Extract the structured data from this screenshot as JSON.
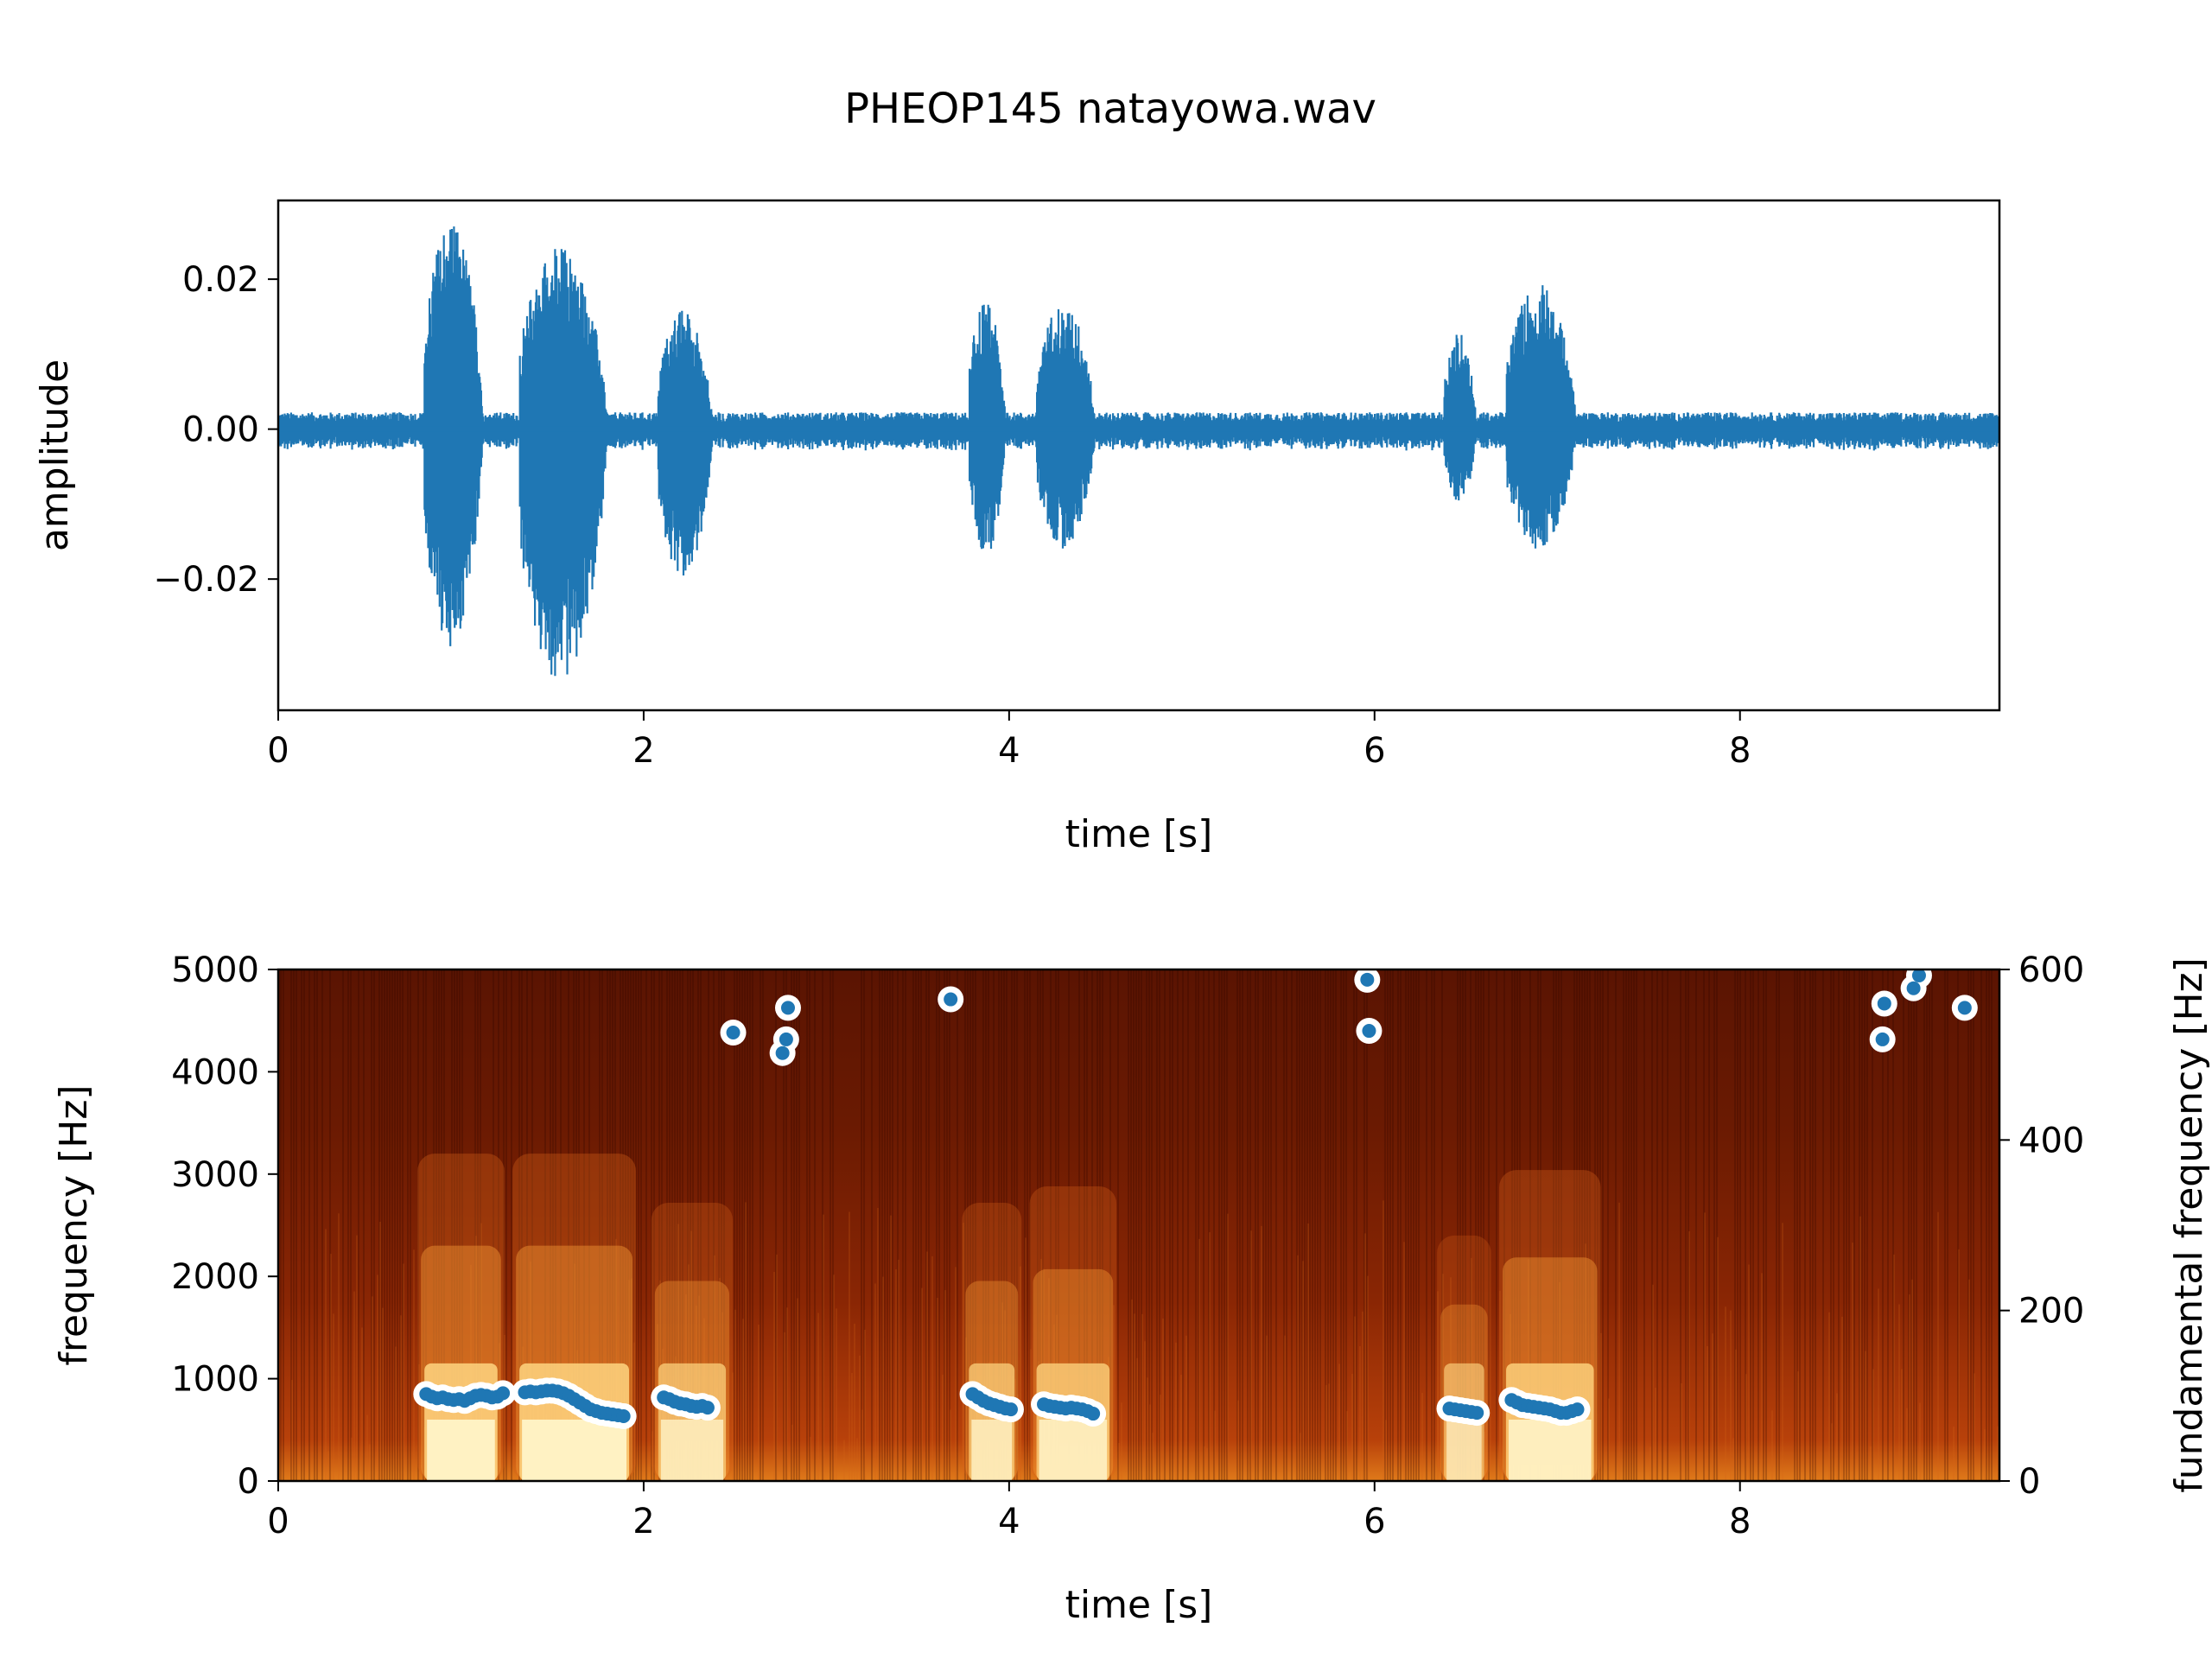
{
  "figure": {
    "title": "PHEOP145 natayowa.wav"
  },
  "chart_data": [
    {
      "type": "line",
      "name": "waveform",
      "title": "",
      "xlabel": "time [s]",
      "ylabel": "amplitude",
      "xlim": [
        0,
        9.42
      ],
      "ylim": [
        -0.0375,
        0.0305
      ],
      "xticks": [
        0,
        2,
        4,
        6,
        8
      ],
      "xtick_labels": [
        "0",
        "2",
        "4",
        "6",
        "8"
      ],
      "yticks": [
        -0.02,
        0.0,
        0.02
      ],
      "ytick_labels": [
        "−0.02",
        "0.00",
        "0.02"
      ],
      "color": "#1f77b4",
      "noise_floor": 0.0016,
      "bursts": [
        {
          "start": 0.8,
          "end": 1.2,
          "max": 0.028,
          "min": -0.029
        },
        {
          "start": 1.32,
          "end": 1.92,
          "max": 0.0245,
          "min": -0.034
        },
        {
          "start": 2.08,
          "end": 2.45,
          "max": 0.016,
          "min": -0.02
        },
        {
          "start": 3.78,
          "end": 4.03,
          "max": 0.017,
          "min": -0.017
        },
        {
          "start": 4.15,
          "end": 4.55,
          "max": 0.017,
          "min": -0.016
        },
        {
          "start": 6.38,
          "end": 6.6,
          "max": 0.013,
          "min": -0.01
        },
        {
          "start": 6.72,
          "end": 7.2,
          "max": 0.0195,
          "min": -0.016
        }
      ]
    },
    {
      "type": "heatmap",
      "name": "spectrogram",
      "title": "",
      "xlabel": "time [s]",
      "ylabel": "frequency [Hz]",
      "ylabel_right": "fundamental frequency [Hz]",
      "xlim": [
        0,
        9.42
      ],
      "ylim": [
        0,
        5000
      ],
      "ylim_right": [
        0,
        600
      ],
      "xticks": [
        0,
        2,
        4,
        6,
        8
      ],
      "xtick_labels": [
        "0",
        "2",
        "4",
        "6",
        "8"
      ],
      "yticks": [
        0,
        1000,
        2000,
        3000,
        4000,
        5000
      ],
      "ytick_labels": [
        "0",
        "1000",
        "2000",
        "3000",
        "4000",
        "5000"
      ],
      "yticks_right": [
        0,
        200,
        400,
        600
      ],
      "ytick_labels_right": [
        "0",
        "200",
        "400",
        "600"
      ],
      "colormap": "afmhot",
      "colors": {
        "low": "#3a0800",
        "mid": "#b03a05",
        "high": "#ffe59a",
        "peak": "#fffbe0"
      },
      "voiced_regions": [
        {
          "start": 0.8,
          "end": 1.2,
          "intensity": 1.0
        },
        {
          "start": 1.32,
          "end": 1.92,
          "intensity": 1.0
        },
        {
          "start": 2.08,
          "end": 2.45,
          "intensity": 0.85
        },
        {
          "start": 3.78,
          "end": 4.03,
          "intensity": 0.85
        },
        {
          "start": 4.15,
          "end": 4.55,
          "intensity": 0.9
        },
        {
          "start": 6.38,
          "end": 6.6,
          "intensity": 0.75
        },
        {
          "start": 6.72,
          "end": 7.2,
          "intensity": 0.95
        }
      ],
      "f0_series": {
        "color": "#1f77b4",
        "points": [
          [
            0.81,
            102
          ],
          [
            0.84,
            99
          ],
          [
            0.87,
            97
          ],
          [
            0.9,
            98
          ],
          [
            0.93,
            96
          ],
          [
            0.96,
            95
          ],
          [
            0.99,
            96
          ],
          [
            1.02,
            94
          ],
          [
            1.05,
            97
          ],
          [
            1.08,
            100
          ],
          [
            1.11,
            101
          ],
          [
            1.14,
            100
          ],
          [
            1.17,
            98
          ],
          [
            1.2,
            99
          ],
          [
            1.23,
            103
          ],
          [
            1.35,
            104
          ],
          [
            1.38,
            105
          ],
          [
            1.41,
            104
          ],
          [
            1.44,
            105
          ],
          [
            1.47,
            106
          ],
          [
            1.5,
            106
          ],
          [
            1.53,
            105
          ],
          [
            1.56,
            103
          ],
          [
            1.59,
            100
          ],
          [
            1.62,
            96
          ],
          [
            1.65,
            92
          ],
          [
            1.68,
            88
          ],
          [
            1.71,
            84
          ],
          [
            1.74,
            82
          ],
          [
            1.77,
            80
          ],
          [
            1.8,
            79
          ],
          [
            1.83,
            78
          ],
          [
            1.86,
            77
          ],
          [
            1.89,
            76
          ],
          [
            2.11,
            98
          ],
          [
            2.14,
            96
          ],
          [
            2.17,
            93
          ],
          [
            2.2,
            91
          ],
          [
            2.23,
            90
          ],
          [
            2.26,
            88
          ],
          [
            2.29,
            87
          ],
          [
            2.32,
            88
          ],
          [
            2.35,
            86
          ],
          [
            3.8,
            102
          ],
          [
            3.83,
            98
          ],
          [
            3.86,
            94
          ],
          [
            3.89,
            91
          ],
          [
            3.92,
            89
          ],
          [
            3.95,
            87
          ],
          [
            3.98,
            85
          ],
          [
            4.01,
            84
          ],
          [
            4.19,
            90
          ],
          [
            4.22,
            88
          ],
          [
            4.25,
            87
          ],
          [
            4.28,
            86
          ],
          [
            4.31,
            85
          ],
          [
            4.34,
            86
          ],
          [
            4.37,
            85
          ],
          [
            4.4,
            84
          ],
          [
            4.43,
            82
          ],
          [
            4.46,
            79
          ],
          [
            6.41,
            85
          ],
          [
            6.44,
            84
          ],
          [
            6.47,
            83
          ],
          [
            6.5,
            82
          ],
          [
            6.53,
            81
          ],
          [
            6.56,
            80
          ],
          [
            6.75,
            95
          ],
          [
            6.78,
            92
          ],
          [
            6.81,
            89
          ],
          [
            6.84,
            88
          ],
          [
            6.87,
            87
          ],
          [
            6.9,
            86
          ],
          [
            6.93,
            85
          ],
          [
            6.96,
            84
          ],
          [
            6.99,
            82
          ],
          [
            7.02,
            80
          ],
          [
            7.05,
            80
          ],
          [
            7.08,
            82
          ],
          [
            7.11,
            84
          ],
          [
            2.49,
            526
          ],
          [
            2.76,
            502
          ],
          [
            2.78,
            518
          ],
          [
            2.79,
            555
          ],
          [
            3.68,
            565
          ],
          [
            5.96,
            588
          ],
          [
            5.97,
            528
          ],
          [
            8.78,
            518
          ],
          [
            8.79,
            560
          ],
          [
            8.95,
            578
          ],
          [
            8.98,
            593
          ],
          [
            9.23,
            555
          ]
        ]
      }
    }
  ]
}
